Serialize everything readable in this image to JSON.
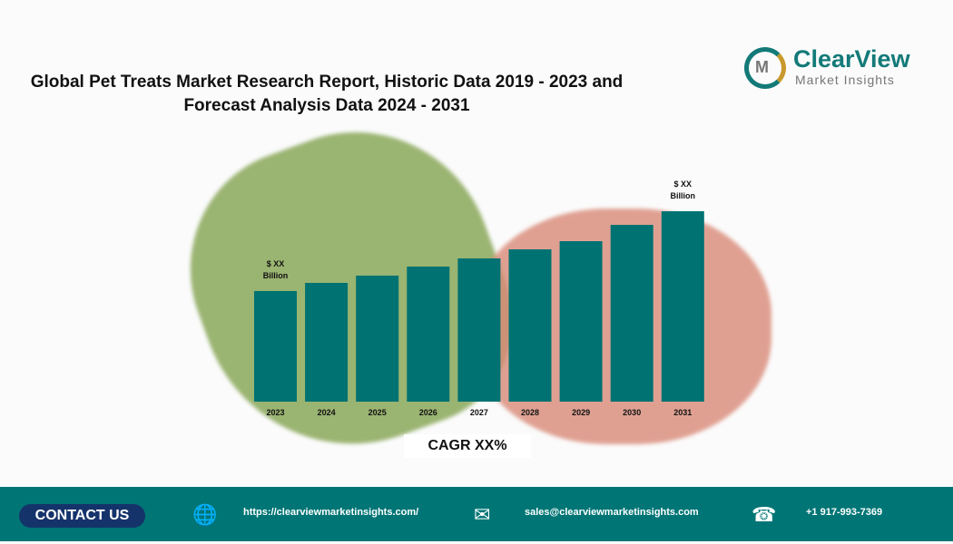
{
  "title": "Global Pet Treats Market Research Report, Historic Data 2019 - 2023 and Forecast Analysis Data 2024 - 2031",
  "logo": {
    "name": "ClearView",
    "tagline": "Market Insights",
    "mark": "M"
  },
  "chart_data": {
    "type": "bar",
    "title": "",
    "categories": [
      "2023",
      "2024",
      "2025",
      "2026",
      "2027",
      "2028",
      "2029",
      "2030",
      "2031"
    ],
    "values": [
      122,
      131,
      139,
      149,
      158,
      168,
      177,
      195,
      210
    ],
    "color": "#007272",
    "ylim": [
      0,
      220
    ],
    "annotations": {
      "first": [
        "$ XX",
        "Billion"
      ],
      "last": [
        "$ XX",
        "Billion"
      ]
    }
  },
  "cagr": "CAGR XX%",
  "footer": {
    "contact": "CONTACT US",
    "website": "https://clearviewmarketinsights.com/",
    "email": "sales@clearviewmarketinsights.com",
    "phone": "+1 917-993-7369",
    "icons": [
      "globe-icon",
      "mail-icon",
      "phone-icon"
    ]
  }
}
